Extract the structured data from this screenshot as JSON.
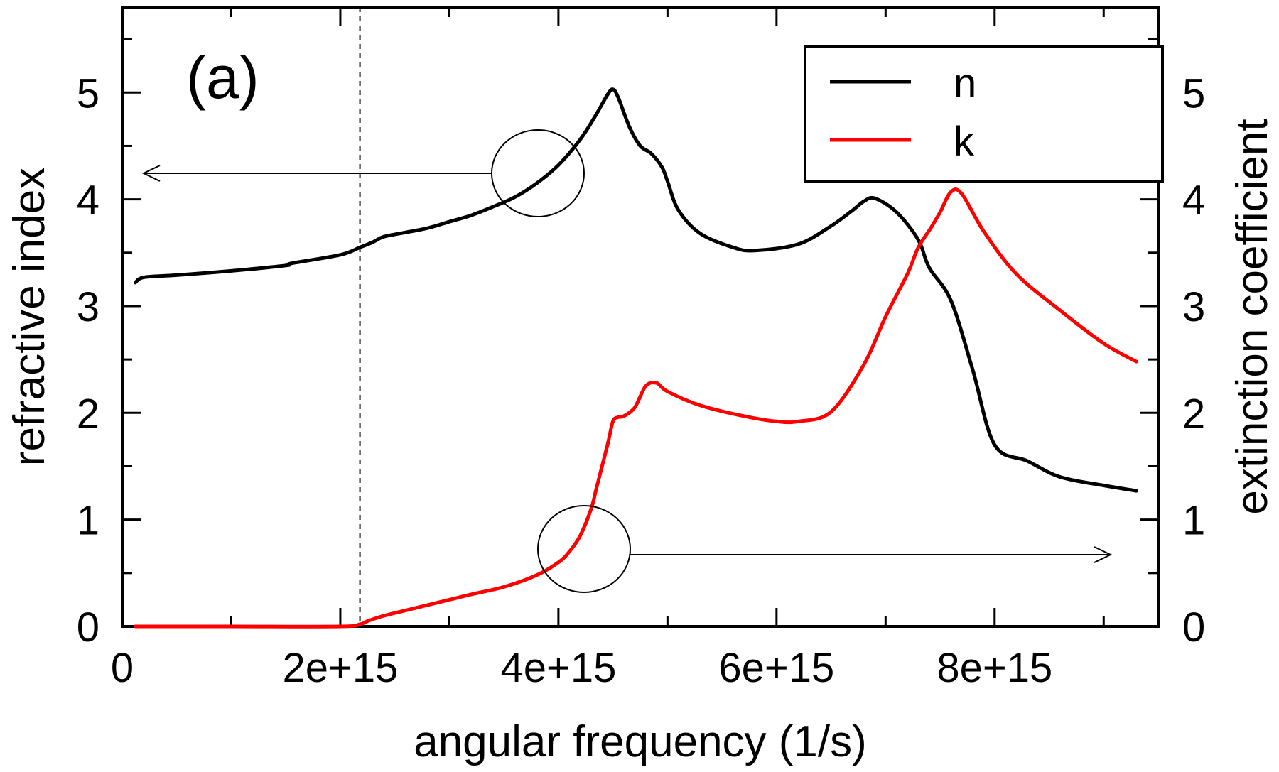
{
  "chart_data": {
    "type": "line",
    "panel_label": "(a)",
    "xlabel": "angular frequency (1/s)",
    "ylabel": "refractive index",
    "y2label": "extinction coefficient",
    "xlim": [
      0,
      9500000000000000.0
    ],
    "ylim": [
      0,
      5.8
    ],
    "y2lim": [
      0,
      5.8
    ],
    "x_ticks": [
      0,
      2000000000000000.0,
      4000000000000000.0,
      6000000000000000.0,
      8000000000000000.0
    ],
    "x_tick_labels": [
      "0",
      "2e+15",
      "4e+15",
      "6e+15",
      "8e+15"
    ],
    "x_minor_ticks": [
      1000000000000000.0,
      3000000000000000.0,
      5000000000000000.0,
      7000000000000000.0,
      9000000000000000.0
    ],
    "y_ticks": [
      0,
      1,
      2,
      3,
      4,
      5
    ],
    "y_tick_labels": [
      "0",
      "1",
      "2",
      "3",
      "4",
      "5"
    ],
    "y_minor_ticks": [
      0.5,
      1.5,
      2.5,
      3.5,
      4.5,
      5.5
    ],
    "y2_ticks": [
      0,
      1,
      2,
      3,
      4,
      5
    ],
    "y2_tick_labels": [
      "0",
      "1",
      "2",
      "3",
      "4",
      "5"
    ],
    "vertical_dashed_line_x": 2180000000000000.0,
    "grid": false,
    "legend_position": "top-right",
    "series": [
      {
        "name": "n",
        "color": "#000000",
        "axis": "left",
        "x": [
          120000000000000.0,
          200000000000000.0,
          500000000000000.0,
          1000000000000000.0,
          1500000000000000.0,
          1550000000000000.0,
          2000000000000000.0,
          2180000000000000.0,
          2300000000000000.0,
          2400000000000000.0,
          2600000000000000.0,
          2800000000000000.0,
          3000000000000000.0,
          3200000000000000.0,
          3400000000000000.0,
          3600000000000000.0,
          3800000000000000.0,
          4000000000000000.0,
          4200000000000000.0,
          4350000000000000.0,
          4450000000000000.0,
          4500000000000000.0,
          4550000000000000.0,
          4650000000000000.0,
          4750000000000000.0,
          4850000000000000.0,
          4950000000000000.0,
          5000000000000000.0,
          5100000000000000.0,
          5300000000000000.0,
          5600000000000000.0,
          5800000000000000.0,
          6200000000000000.0,
          6500000000000000.0,
          6700000000000000.0,
          6800000000000000.0,
          6900000000000000.0,
          7100000000000000.0,
          7300000000000000.0,
          7400000000000000.0,
          7600000000000000.0,
          7800000000000000.0,
          8000000000000000.0,
          8300000000000000.0,
          8600000000000000.0,
          9000000000000000.0,
          9300000000000000.0
        ],
        "y": [
          3.22,
          3.27,
          3.29,
          3.33,
          3.38,
          3.4,
          3.48,
          3.55,
          3.6,
          3.65,
          3.69,
          3.73,
          3.79,
          3.85,
          3.93,
          4.02,
          4.15,
          4.32,
          4.56,
          4.8,
          4.98,
          5.03,
          4.95,
          4.68,
          4.5,
          4.43,
          4.3,
          4.17,
          3.9,
          3.68,
          3.55,
          3.52,
          3.58,
          3.75,
          3.9,
          3.98,
          4.01,
          3.88,
          3.62,
          3.36,
          3.05,
          2.4,
          1.7,
          1.55,
          1.4,
          1.32,
          1.27
        ]
      },
      {
        "name": "k",
        "color": "#ff0000",
        "axis": "right",
        "x": [
          120000000000000.0,
          1000000000000000.0,
          2000000000000000.0,
          2180000000000000.0,
          2250000000000000.0,
          2400000000000000.0,
          2600000000000000.0,
          2800000000000000.0,
          3000000000000000.0,
          3200000000000000.0,
          3500000000000000.0,
          3800000000000000.0,
          4000000000000000.0,
          4100000000000000.0,
          4200000000000000.0,
          4300000000000000.0,
          4350000000000000.0,
          4450000000000000.0,
          4500000000000000.0,
          4550000000000000.0,
          4600000000000000.0,
          4700000000000000.0,
          4800000000000000.0,
          4900000000000000.0,
          5000000000000000.0,
          5300000000000000.0,
          5700000000000000.0,
          6000000000000000.0,
          6200000000000000.0,
          6500000000000000.0,
          6800000000000000.0,
          7000000000000000.0,
          7200000000000000.0,
          7300000000000000.0,
          7420000000000000.0,
          7500000000000000.0,
          7600000000000000.0,
          7700000000000000.0,
          7900000000000000.0,
          8200000000000000.0,
          8600000000000000.0,
          9000000000000000.0,
          9300000000000000.0
        ],
        "y": [
          0.0,
          0.0,
          0.0,
          0.02,
          0.05,
          0.1,
          0.15,
          0.2,
          0.25,
          0.3,
          0.37,
          0.48,
          0.6,
          0.7,
          0.85,
          1.1,
          1.3,
          1.7,
          1.92,
          1.96,
          1.97,
          2.05,
          2.25,
          2.28,
          2.2,
          2.07,
          1.97,
          1.92,
          1.92,
          2.01,
          2.45,
          2.9,
          3.3,
          3.55,
          3.74,
          3.88,
          4.07,
          4.05,
          3.7,
          3.3,
          2.96,
          2.65,
          2.48
        ]
      }
    ],
    "annotations": [
      {
        "type": "circle-arrow",
        "points_to": "left axis",
        "series": "n"
      },
      {
        "type": "circle-arrow",
        "points_to": "right axis",
        "series": "k"
      }
    ]
  }
}
